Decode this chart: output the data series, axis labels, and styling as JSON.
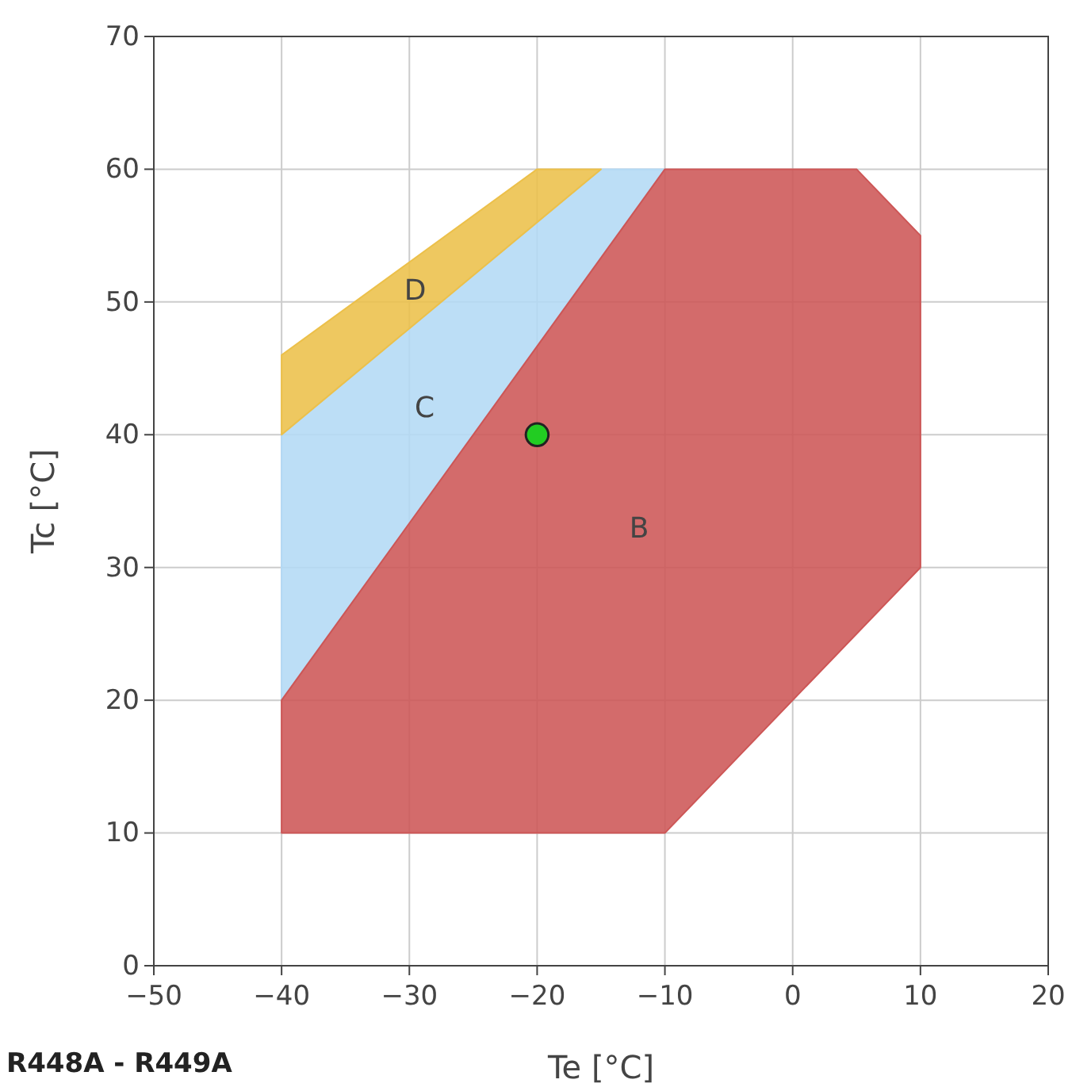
{
  "chart_data": {
    "type": "area",
    "xlabel": "Te [°C]",
    "ylabel": "Tc [°C]",
    "xlim": [
      -50,
      20
    ],
    "xticks": [
      {
        "value": -50,
        "label": "−50"
      },
      {
        "value": -40,
        "label": "−40"
      },
      {
        "value": -30,
        "label": "−30"
      },
      {
        "value": -20,
        "label": "−20"
      },
      {
        "value": -10,
        "label": "−10"
      },
      0,
      10,
      20
    ],
    "ylim": [
      0,
      70
    ],
    "yticks": [
      0,
      10,
      20,
      30,
      40,
      50,
      60,
      70
    ],
    "grid": true,
    "series": [
      {
        "name": "C",
        "color": "#b3d9f5",
        "x": [
          -40,
          -40,
          -15,
          -10
        ],
        "values": [
          20,
          40,
          60,
          60
        ]
      },
      {
        "name": "D",
        "color": "#ecc04a",
        "x": [
          -40,
          -40,
          -20,
          -15
        ],
        "values": [
          40,
          46,
          60,
          60
        ]
      },
      {
        "name": "B",
        "color": "#cd5656",
        "x": [
          -40,
          -10,
          10,
          10,
          5,
          -10,
          -40
        ],
        "values": [
          10,
          10,
          30,
          55,
          60,
          60,
          20
        ]
      },
      {
        "type": "scatter",
        "color": "#22cc22",
        "marker": "circle",
        "x": [
          -20
        ],
        "values": [
          40
        ]
      }
    ],
    "annotations": [
      "R448A - R449A"
    ]
  }
}
